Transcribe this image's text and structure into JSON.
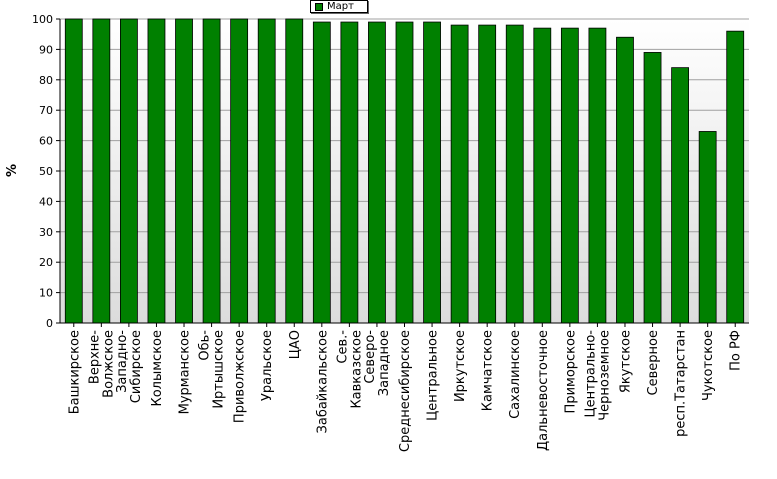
{
  "legend": {
    "label": "Март"
  },
  "colors": {
    "bar": "#008000",
    "plot_bg_top": "#ffffff",
    "plot_bg_bottom": "#dcdcdc",
    "grid": "#a0a0a0"
  },
  "chart_data": {
    "type": "bar",
    "title": "",
    "xlabel": "",
    "ylabel": "%",
    "ylim": [
      0,
      100
    ],
    "yticks": [
      0,
      10,
      20,
      30,
      40,
      50,
      60,
      70,
      80,
      90,
      100
    ],
    "grid": true,
    "legend_position": "top-center",
    "categories": [
      "Башкирское",
      "Верхне-Волжское",
      "Западно-Сибирское",
      "Колымское",
      "Мурманское",
      "Обь-Иртышское",
      "Приволжское",
      "Уральское",
      "ЦАО",
      "Забайкальское",
      "Сев.-Кавказское",
      "Северо-Западное",
      "Среднесибирское",
      "Центральное",
      "Иркутское",
      "Камчатское",
      "Сахалинское",
      "Дальневосточное",
      "Приморское",
      "Центрально-Черноземное",
      "Якутское",
      "Северное",
      "респ.Татарстан",
      "Чукотское",
      "По РФ"
    ],
    "series": [
      {
        "name": "Март",
        "values": [
          100,
          100,
          100,
          100,
          100,
          100,
          100,
          100,
          100,
          99,
          99,
          99,
          99,
          99,
          98,
          98,
          98,
          97,
          97,
          97,
          94,
          89,
          84,
          63,
          96
        ]
      }
    ]
  }
}
